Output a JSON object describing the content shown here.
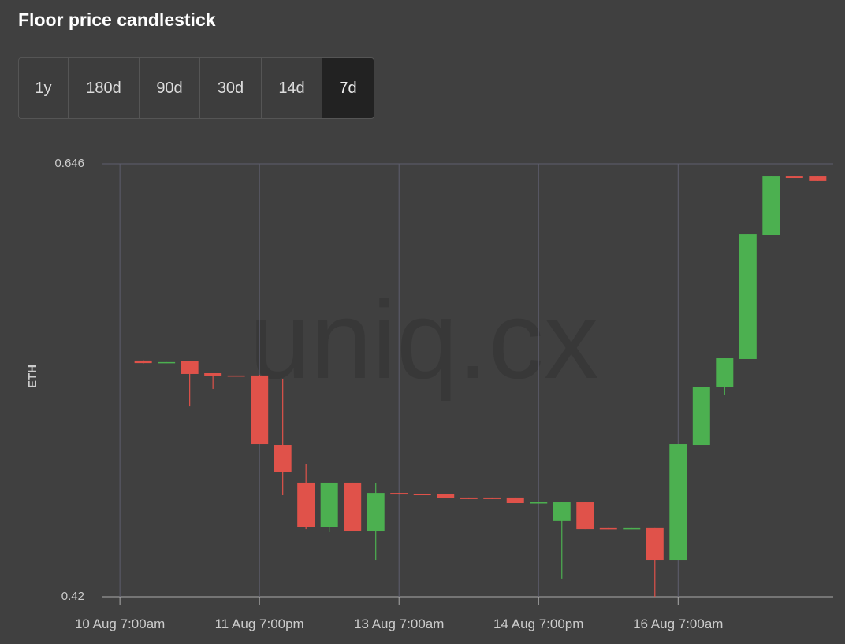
{
  "header": {
    "title": "Floor price candlestick"
  },
  "controls": {
    "buttons": [
      "1y",
      "180d",
      "90d",
      "30d",
      "14d",
      "7d"
    ],
    "selected": 5
  },
  "chart_data": {
    "type": "candlestick",
    "watermark": "uniq.cx",
    "y_label": "ETH",
    "ylim": [
      0.42,
      0.646
    ],
    "yticks": [
      0.646,
      0.42
    ],
    "xlim": [
      "10 Aug 2:30am",
      "17 Aug 11:00pm"
    ],
    "xticks": [
      "10 Aug 7:00am",
      "11 Aug 7:00pm",
      "13 Aug 7:00am",
      "14 Aug 7:00pm",
      "16 Aug 7:00am"
    ],
    "grid": true,
    "up_color": "#4cb050",
    "down_color": "#e0524a",
    "x": [
      "10 Aug 1:00pm",
      "10 Aug 7:00pm",
      "11 Aug 1:00am",
      "11 Aug 7:00am",
      "11 Aug 1:00pm",
      "11 Aug 7:00pm",
      "12 Aug 1:00am",
      "12 Aug 7:00am",
      "12 Aug 1:00pm",
      "12 Aug 7:00pm",
      "13 Aug 1:00am",
      "13 Aug 7:00am",
      "13 Aug 1:00pm",
      "13 Aug 7:00pm",
      "14 Aug 1:00am",
      "14 Aug 7:00am",
      "14 Aug 1:00pm",
      "14 Aug 7:00pm",
      "15 Aug 1:00am",
      "15 Aug 7:00am",
      "15 Aug 1:00pm",
      "15 Aug 7:00pm",
      "16 Aug 1:00am",
      "16 Aug 7:00am",
      "16 Aug 1:00pm",
      "16 Aug 7:00pm",
      "17 Aug 1:00am",
      "17 Aug 7:00am",
      "17 Aug 1:00pm",
      "17 Aug 7:00pm"
    ],
    "open": [
      0.5433,
      0.542,
      0.5429,
      0.5367,
      0.5355,
      0.5355,
      0.4993,
      0.4796,
      0.4562,
      0.4796,
      0.4541,
      0.4742,
      0.4738,
      0.4738,
      0.4718,
      0.4718,
      0.4718,
      0.4689,
      0.4595,
      0.4693,
      0.4558,
      0.4553,
      0.4558,
      0.4393,
      0.4993,
      0.5293,
      0.5441,
      0.609,
      0.6394,
      0.6394
    ],
    "high": [
      0.5437,
      0.5425,
      0.5429,
      0.5367,
      0.5355,
      0.5359,
      0.5334,
      0.4894,
      0.4796,
      0.4796,
      0.4792,
      0.4742,
      0.4738,
      0.4738,
      0.4718,
      0.4718,
      0.4718,
      0.4693,
      0.4693,
      0.4693,
      0.4558,
      0.4558,
      0.4558,
      0.4997,
      0.5297,
      0.5445,
      0.6094,
      0.6394,
      0.6394,
      0.6394
    ],
    "low": [
      0.5416,
      0.542,
      0.5194,
      0.5285,
      0.5351,
      0.4997,
      0.473,
      0.4553,
      0.4537,
      0.4541,
      0.4393,
      0.4734,
      0.473,
      0.4714,
      0.471,
      0.471,
      0.4689,
      0.4689,
      0.4295,
      0.4553,
      0.4553,
      0.4553,
      0.42,
      0.4393,
      0.4993,
      0.5252,
      0.5441,
      0.609,
      0.6386,
      0.637
    ],
    "close": [
      0.542,
      0.5425,
      0.5363,
      0.5351,
      0.5351,
      0.4997,
      0.4853,
      0.4562,
      0.4796,
      0.4541,
      0.4742,
      0.4734,
      0.473,
      0.4714,
      0.471,
      0.471,
      0.4689,
      0.4693,
      0.4693,
      0.4553,
      0.4553,
      0.4558,
      0.4393,
      0.4997,
      0.5297,
      0.5445,
      0.6094,
      0.6394,
      0.6386,
      0.637
    ]
  }
}
